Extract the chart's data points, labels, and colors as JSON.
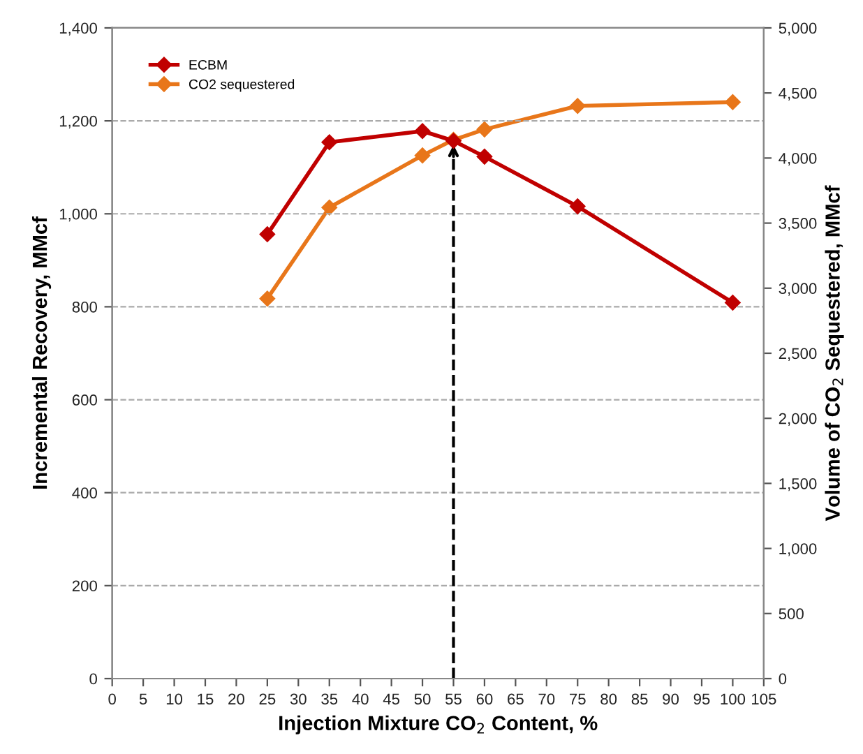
{
  "chart_data": {
    "type": "line",
    "xlabel": "Injection Mixture CO$_{2}$ Content, %",
    "ylabel": "Incremental Recovery, MMcf",
    "y2label": "Volume of CO$_{2}$ Sequestered, MMcf",
    "x": [
      25,
      35,
      50,
      55,
      60,
      75,
      100
    ],
    "series": [
      {
        "name": "ECBM",
        "color": "#c00000",
        "values": [
          956,
          1154,
          1178,
          1157,
          1123,
          1016,
          809
        ]
      },
      {
        "name": "CO2 sequestered",
        "color": "#e8761a",
        "axis": "y2",
        "values": [
          2920,
          3620,
          4020,
          4140,
          4220,
          4400,
          4430
        ]
      }
    ],
    "xlim": [
      0,
      105
    ],
    "xticks": [
      0,
      5,
      10,
      15,
      20,
      25,
      30,
      35,
      40,
      45,
      50,
      55,
      60,
      65,
      70,
      75,
      80,
      85,
      90,
      95,
      100,
      105
    ],
    "ylim": [
      0,
      1400
    ],
    "yticks": [
      0,
      {
        "value": 200,
        "label": "200"
      },
      {
        "value": 400,
        "label": "400"
      },
      {
        "value": 600,
        "label": "600"
      },
      {
        "value": 800,
        "label": "800"
      },
      {
        "value": 1000,
        "label": "1,000"
      },
      {
        "value": 1200,
        "label": "1,200"
      },
      {
        "value": 1400,
        "label": "1,400"
      }
    ],
    "y2lim": [
      0,
      5000
    ],
    "y2ticks": [
      0,
      500,
      {
        "value": 1000,
        "label": "1,000"
      },
      {
        "value": 1500,
        "label": "1,500"
      },
      {
        "value": 2000,
        "label": "2,000"
      },
      {
        "value": 2500,
        "label": "2,500"
      },
      {
        "value": 3000,
        "label": "3,000"
      },
      {
        "value": 3500,
        "label": "3,500"
      },
      {
        "value": 4000,
        "label": "4,000"
      },
      {
        "value": 4500,
        "label": "4,500"
      },
      {
        "value": 5000,
        "label": "5,000"
      }
    ],
    "ref_lines": [
      {
        "axis": "x",
        "value": 55,
        "color": "#000000",
        "line_style": "dashed"
      }
    ],
    "grid": "y",
    "legend": "top left",
    "marker": "diamond",
    "line_style": "solid"
  }
}
